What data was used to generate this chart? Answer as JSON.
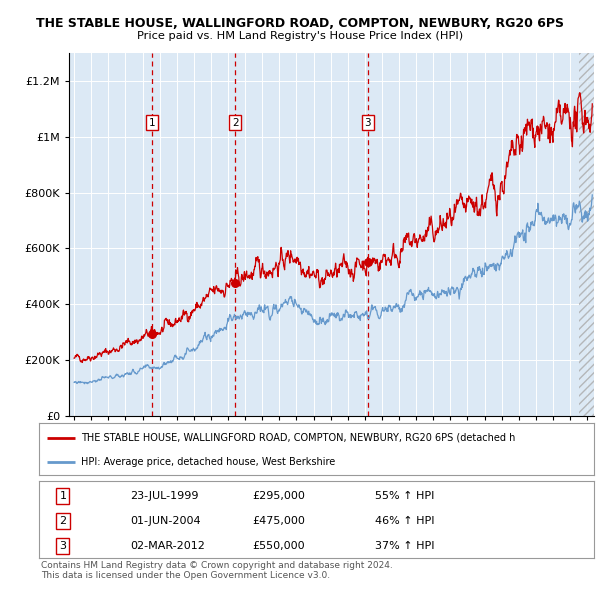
{
  "title1": "THE STABLE HOUSE, WALLINGFORD ROAD, COMPTON, NEWBURY, RG20 6PS",
  "title2": "Price paid vs. HM Land Registry's House Price Index (HPI)",
  "ylim": [
    0,
    1300000
  ],
  "yticks": [
    0,
    200000,
    400000,
    600000,
    800000,
    1000000,
    1200000
  ],
  "ytick_labels": [
    "£0",
    "£200K",
    "£400K",
    "£600K",
    "£800K",
    "£1M",
    "£1.2M"
  ],
  "plot_bg": "#dce9f5",
  "sale_dates": [
    1999.56,
    2004.42,
    2012.17
  ],
  "sale_prices": [
    295000,
    475000,
    550000
  ],
  "sale_labels": [
    "1",
    "2",
    "3"
  ],
  "legend_line1": "THE STABLE HOUSE, WALLINGFORD ROAD, COMPTON, NEWBURY, RG20 6PS (detached h",
  "legend_line2": "HPI: Average price, detached house, West Berkshire",
  "table_data": [
    [
      "1",
      "23-JUL-1999",
      "£295,000",
      "55% ↑ HPI"
    ],
    [
      "2",
      "01-JUN-2004",
      "£475,000",
      "46% ↑ HPI"
    ],
    [
      "3",
      "02-MAR-2012",
      "£550,000",
      "37% ↑ HPI"
    ]
  ],
  "footer1": "Contains HM Land Registry data © Crown copyright and database right 2024.",
  "footer2": "This data is licensed under the Open Government Licence v3.0.",
  "red_line_color": "#cc0000",
  "blue_line_color": "#6699cc",
  "vline_color": "#cc0000",
  "xlim_left": 1994.7,
  "xlim_right": 2025.4
}
